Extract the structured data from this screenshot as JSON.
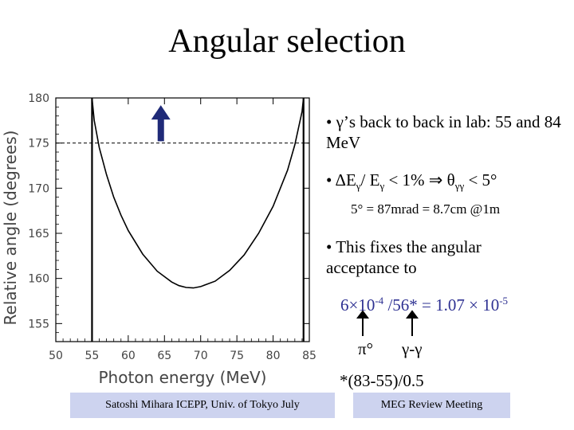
{
  "slide": {
    "title": "Angular selection",
    "bullet1": "• γ’s back to back in lab: 55 and 84 MeV",
    "bullet2_prefix": "• ΔE",
    "bullet2_sub1": "γ",
    "bullet2_mid": "/ E",
    "bullet2_sub2": "γ",
    "bullet2_cond": " < 1%  ⇒  θ",
    "bullet2_sub3": "γγ",
    "bullet2_end": " < 5°",
    "note": "5° = 87mrad = 8.7cm @1m",
    "bullet3": "• This fixes the angular acceptance to",
    "formula_a": "6×10",
    "formula_exp1": "-4",
    "formula_b": " /56* = 1.07 × 10",
    "formula_exp2": "-5",
    "label_pi": "π°",
    "label_gg": "γ-γ",
    "footnote": "*(83-55)/0.5",
    "footer_left": "Satoshi Mihara ICEPP, Univ. of Tokyo July",
    "footer_right": "MEG Review Meeting"
  },
  "chart_data": {
    "type": "line",
    "xlabel": "Photon energy (MeV)",
    "ylabel": "Relative angle (degrees)",
    "xlim": [
      50,
      85
    ],
    "ylim": [
      153,
      180
    ],
    "xticks": [
      50,
      55,
      60,
      65,
      70,
      75,
      80,
      85
    ],
    "yticks": [
      155,
      160,
      165,
      170,
      175,
      180
    ],
    "series": [
      {
        "x": [
          55.0,
          55.3,
          56,
          57,
          58,
          59,
          60,
          62,
          64,
          66,
          67,
          68,
          69,
          70,
          72,
          74,
          76,
          78,
          80,
          82,
          83,
          84,
          84.2
        ],
        "y": [
          180,
          177.5,
          174.5,
          171.5,
          169,
          167,
          165.3,
          162.7,
          160.8,
          159.6,
          159.2,
          159.0,
          158.95,
          159.1,
          159.7,
          160.9,
          162.6,
          165.0,
          168.0,
          172.0,
          174.8,
          178.5,
          180
        ]
      }
    ],
    "reference_lines": [
      {
        "orientation": "vertical",
        "x": 55
      },
      {
        "orientation": "vertical",
        "x": 84.2
      },
      {
        "orientation": "horizontal",
        "y": 175,
        "style": "dashed"
      }
    ],
    "arrow": {
      "x": 64.5,
      "y_from": 175.2,
      "y_to": 179.2,
      "color": "#1f2a78"
    }
  }
}
